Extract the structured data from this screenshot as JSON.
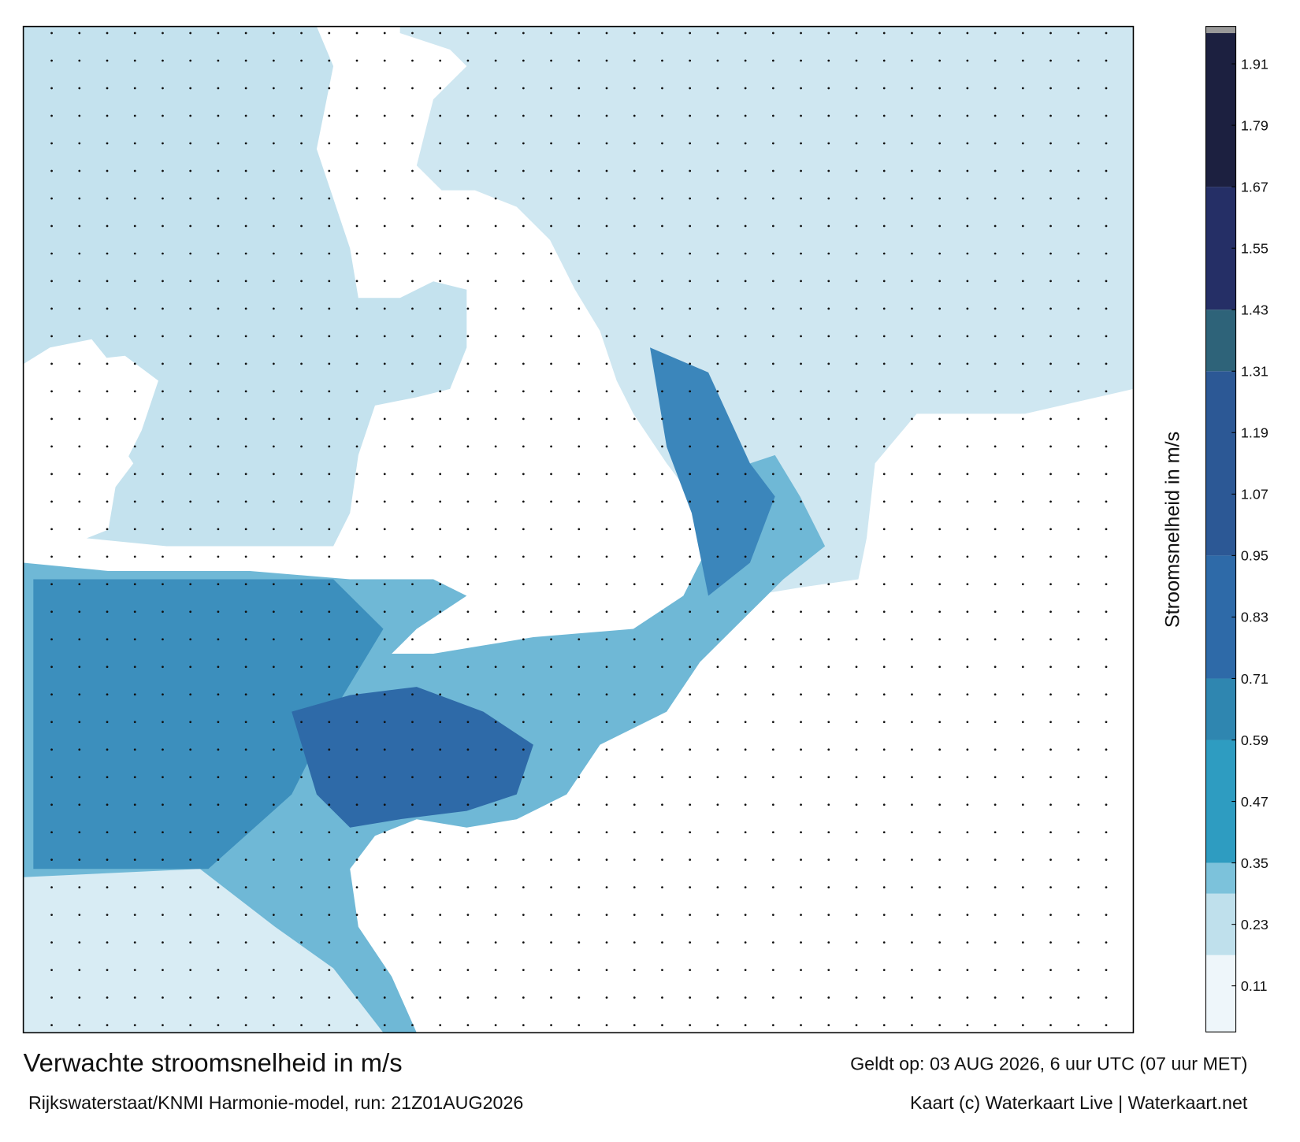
{
  "map": {
    "title": "Verwachte stroomsnelheid in m/s",
    "subtitle": "Rijkswaterstaat/KNMI Harmonie-model, run: 21Z01AUG2026",
    "valid_time": "Geldt op: 03 AUG 2026, 6 uur UTC (07 uur MET)",
    "credit": "Kaart (c) Waterkaart Live | Waterkaart.net",
    "colorbar": {
      "label": "Stroomsnelheid in m/s",
      "clim": [
        0.02,
        1.97
      ],
      "ticks": [
        0.11,
        0.23,
        0.35,
        0.47,
        0.59,
        0.71,
        0.83,
        0.95,
        1.07,
        1.19,
        1.31,
        1.43,
        1.55,
        1.67,
        1.79,
        1.91
      ],
      "levels": [
        0.02,
        0.17,
        0.29,
        0.35,
        0.59,
        0.71,
        0.95,
        1.31,
        1.43,
        1.67,
        1.97
      ],
      "colors": [
        "#eef6fa",
        "#bfe0ec",
        "#7cc2db",
        "#2e9cc1",
        "#2f86b0",
        "#2e6aa8",
        "#2c5895",
        "#2e6379",
        "#252f66",
        "#1c2040"
      ]
    }
  }
}
